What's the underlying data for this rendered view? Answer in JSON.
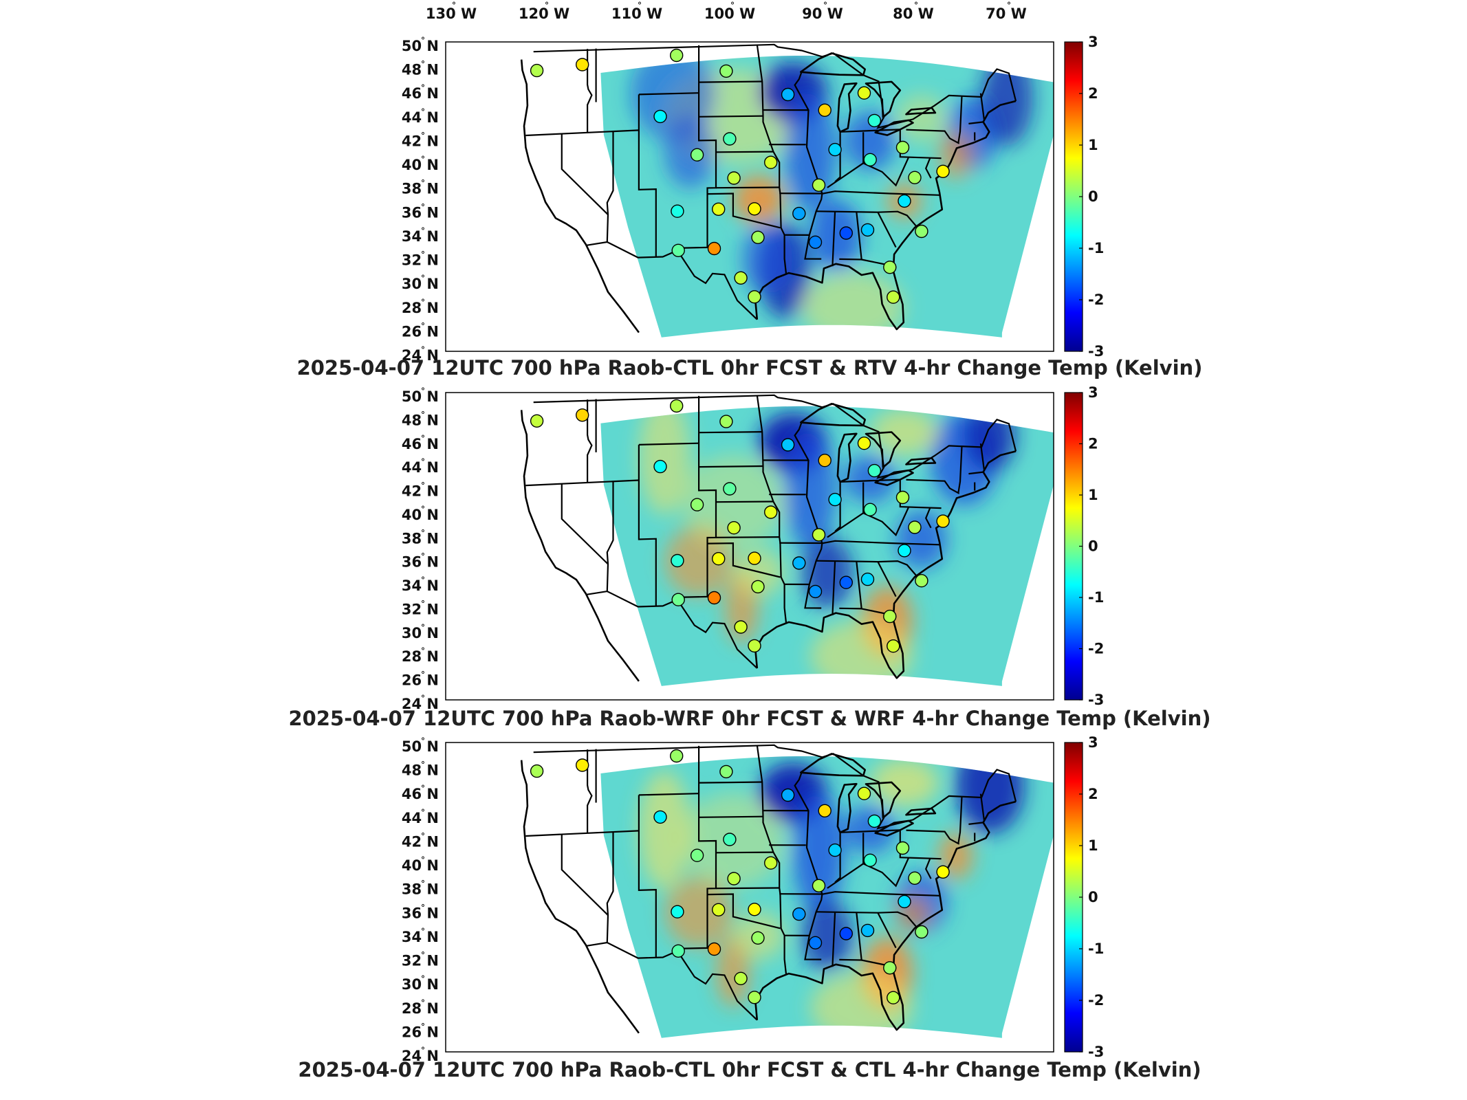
{
  "lon_labels": [
    "130",
    "120",
    "110",
    "100",
    "90",
    "80",
    "70"
  ],
  "lon_suffix": "W",
  "lat_labels": [
    "50",
    "48",
    "46",
    "44",
    "42",
    "40",
    "38",
    "36",
    "34",
    "32",
    "30",
    "28",
    "26",
    "24"
  ],
  "lat_suffix": "N",
  "degree_symbol": "°",
  "colorbar": {
    "ticks": [
      "3",
      "2",
      "1",
      "0",
      "-1",
      "-2",
      "-3"
    ],
    "min": -3,
    "max": 3,
    "colormap": [
      "#00008f",
      "#0000ff",
      "#0080ff",
      "#00ffff",
      "#80ff80",
      "#ffff00",
      "#ff8000",
      "#ff0000",
      "#800000"
    ]
  },
  "panels": [
    {
      "title": "2025-04-07 12UTC 700 hPa Raob-CTL 0hr FCST & RTV 4-hr Change Temp (Kelvin)",
      "field_colors": {
        "base": "#5fd8d0",
        "warm": "#ffe45a",
        "hot": "#ff8a2a",
        "cold": "#1a4de0",
        "deep": "#0a1fb0"
      }
    },
    {
      "title": "2025-04-07 12UTC 700 hPa Raob-WRF 0hr FCST & WRF 4-hr Change Temp (Kelvin)",
      "field_colors": {
        "base": "#5fd8d0",
        "warm": "#ffe45a",
        "hot": "#ff8a2a",
        "cold": "#1a4de0",
        "deep": "#0a1fb0"
      }
    },
    {
      "title": "2025-04-07 12UTC 700 hPa Raob-CTL 0hr FCST & CTL 4-hr Change Temp (Kelvin)",
      "field_colors": {
        "base": "#5fd8d0",
        "warm": "#ffe45a",
        "hot": "#ff8a2a",
        "cold": "#1a4de0",
        "deep": "#0a1fb0"
      }
    }
  ],
  "stations": [
    {
      "lon": -122.9,
      "lat": 47.4,
      "v": 0.3
    },
    {
      "lon": -117.6,
      "lat": 47.7,
      "v": 0.9
    },
    {
      "lon": -106.6,
      "lat": 48.2,
      "v": 0.2
    },
    {
      "lon": -100.8,
      "lat": 46.8,
      "v": 0.1
    },
    {
      "lon": -93.6,
      "lat": 44.8,
      "v": -1.2
    },
    {
      "lon": -84.7,
      "lat": 45.0,
      "v": 0.6
    },
    {
      "lon": -108.5,
      "lat": 43.1,
      "v": -0.8
    },
    {
      "lon": -100.4,
      "lat": 41.1,
      "v": -0.3
    },
    {
      "lon": -89.3,
      "lat": 43.5,
      "v": 1.0
    },
    {
      "lon": -83.5,
      "lat": 42.7,
      "v": -0.5
    },
    {
      "lon": -88.1,
      "lat": 40.2,
      "v": -1.0
    },
    {
      "lon": -84.0,
      "lat": 39.4,
      "v": -0.4
    },
    {
      "lon": -80.2,
      "lat": 40.5,
      "v": 0.2
    },
    {
      "lon": -104.2,
      "lat": 39.8,
      "v": 0.0
    },
    {
      "lon": -95.6,
      "lat": 39.1,
      "v": 0.5
    },
    {
      "lon": -99.9,
      "lat": 37.8,
      "v": 0.4
    },
    {
      "lon": -90.0,
      "lat": 37.2,
      "v": 0.3
    },
    {
      "lon": -78.8,
      "lat": 38.0,
      "v": 0.2
    },
    {
      "lon": -75.5,
      "lat": 38.6,
      "v": 0.8
    },
    {
      "lon": -106.5,
      "lat": 35.1,
      "v": -0.6
    },
    {
      "lon": -101.7,
      "lat": 35.2,
      "v": 0.6
    },
    {
      "lon": -97.5,
      "lat": 35.2,
      "v": 0.8
    },
    {
      "lon": -92.3,
      "lat": 34.8,
      "v": -1.3
    },
    {
      "lon": -86.8,
      "lat": 33.2,
      "v": -1.8
    },
    {
      "lon": -84.3,
      "lat": 33.5,
      "v": -1.1
    },
    {
      "lon": -80.0,
      "lat": 36.0,
      "v": -0.9
    },
    {
      "lon": -78.0,
      "lat": 33.5,
      "v": 0.1
    },
    {
      "lon": -106.4,
      "lat": 31.8,
      "v": -0.2
    },
    {
      "lon": -102.2,
      "lat": 31.9,
      "v": 1.4
    },
    {
      "lon": -97.1,
      "lat": 32.8,
      "v": 0.2
    },
    {
      "lon": -99.1,
      "lat": 29.4,
      "v": 0.4
    },
    {
      "lon": -81.7,
      "lat": 30.4,
      "v": 0.2
    },
    {
      "lon": -97.5,
      "lat": 27.8,
      "v": 0.3
    },
    {
      "lon": -81.3,
      "lat": 27.9,
      "v": 0.4
    },
    {
      "lon": -90.4,
      "lat": 32.4,
      "v": -1.5
    }
  ]
}
